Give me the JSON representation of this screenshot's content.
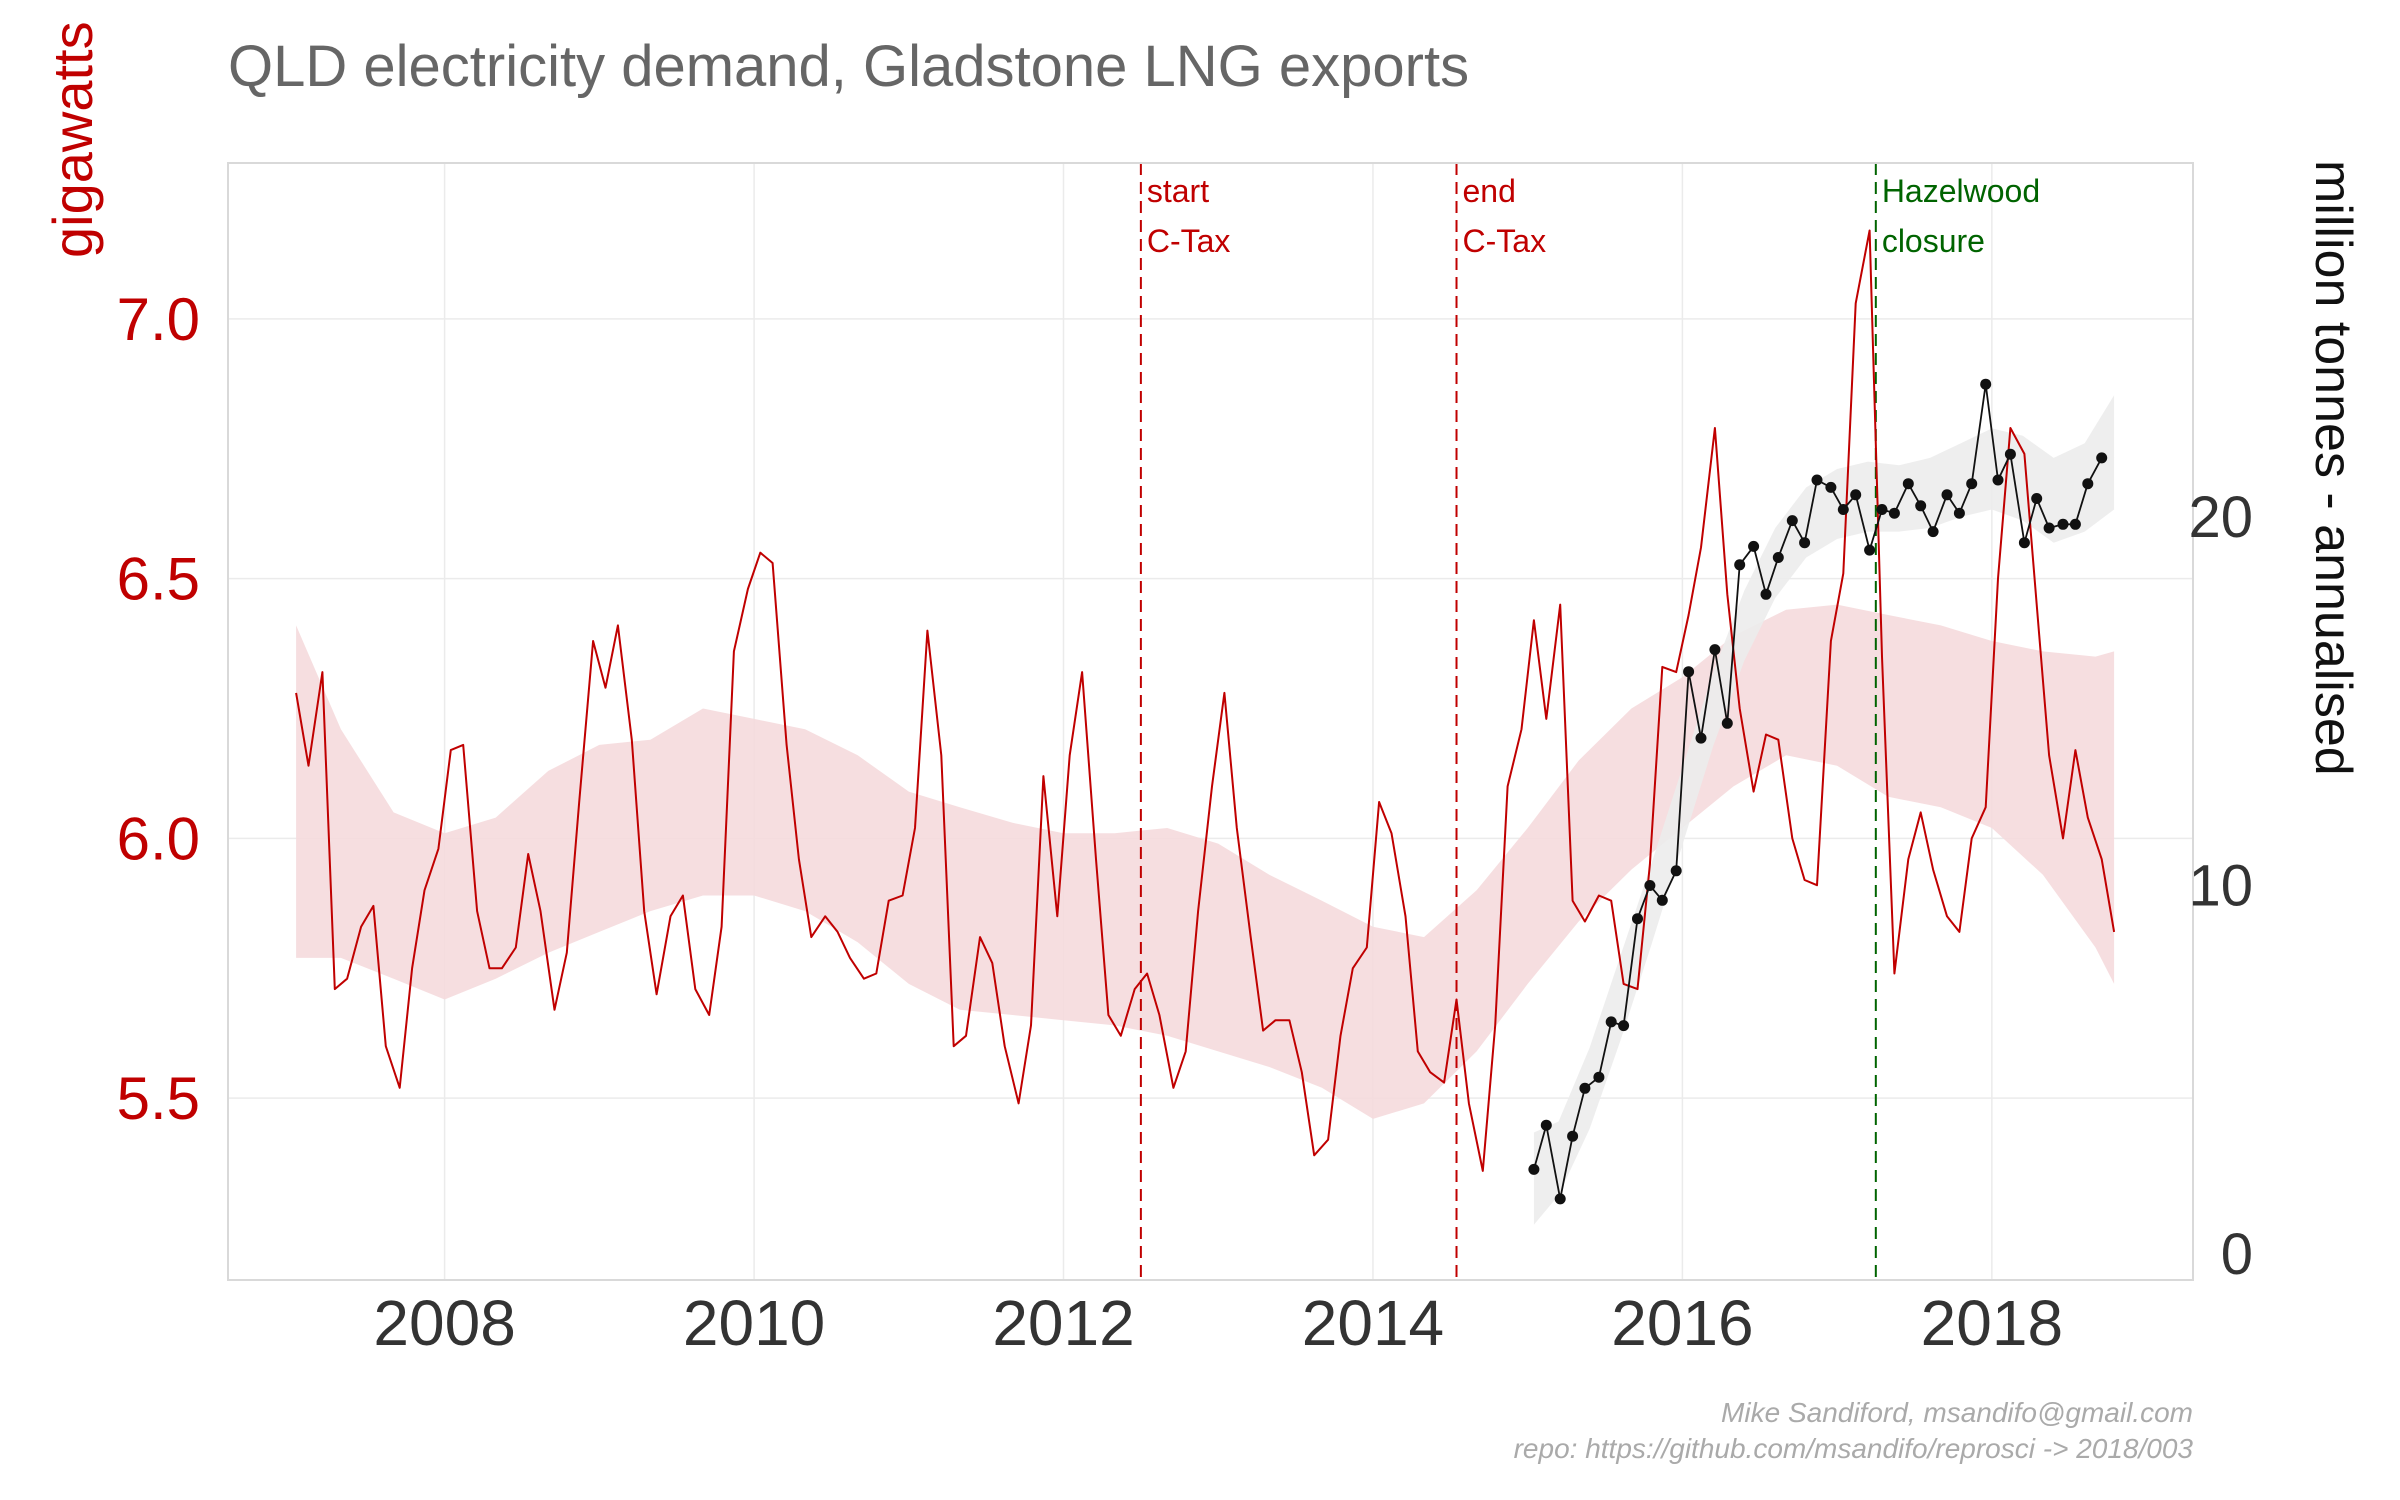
{
  "chart_data": {
    "type": "line",
    "title": "QLD electricity demand, Gladstone LNG exports",
    "caption": [
      "Mike Sandiford, msandifo@gmail.com",
      "repo: https://github.com/msandifo/reprosci -> 2018/003"
    ],
    "colors": {
      "demand": "#c00000",
      "demand_band": "#f5dadd",
      "lng": "#111111",
      "lng_band": "#ececec",
      "grid": "#ebebeb",
      "panel_border": "#d9d9d9",
      "annotation_red": "#c00000",
      "annotation_green": "#006400"
    },
    "left_axis": {
      "title": "gigawatts",
      "ticks": [
        5.5,
        6.0,
        6.5,
        7.0
      ],
      "tick_labels": [
        "5.5",
        "6.0",
        "6.5",
        "7.0"
      ],
      "range": [
        5.15,
        7.3
      ]
    },
    "right_axis": {
      "title": "million tonnes - annualised",
      "ticks": [
        0,
        10,
        20
      ],
      "tick_labels": [
        "0",
        "10",
        "20"
      ],
      "range": [
        -0.7,
        29.6
      ]
    },
    "x_axis": {
      "ticks": [
        2008,
        2010,
        2012,
        2014,
        2016,
        2018
      ],
      "tick_labels": [
        "2008",
        "2010",
        "2012",
        "2014",
        "2016",
        "2018"
      ],
      "range": [
        2006.6,
        2019.3
      ]
    },
    "annotations": [
      {
        "x": 2012.5,
        "lines": [
          "start",
          "C-Tax"
        ],
        "color": "red"
      },
      {
        "x": 2014.54,
        "lines": [
          "end",
          "C-Tax"
        ],
        "color": "red"
      },
      {
        "x": 2017.25,
        "lines": [
          "Hazelwood",
          "closure"
        ],
        "color": "green"
      }
    ],
    "series": [
      {
        "axis": "left",
        "style": "line",
        "values": [
          [
            2007.04,
            6.28
          ],
          [
            2007.12,
            6.14
          ],
          [
            2007.21,
            6.32
          ],
          [
            2007.29,
            5.71
          ],
          [
            2007.37,
            5.73
          ],
          [
            2007.46,
            5.83
          ],
          [
            2007.54,
            5.87
          ],
          [
            2007.62,
            5.6
          ],
          [
            2007.71,
            5.52
          ],
          [
            2007.79,
            5.75
          ],
          [
            2007.87,
            5.9
          ],
          [
            2007.96,
            5.98
          ],
          [
            2008.04,
            6.17
          ],
          [
            2008.12,
            6.18
          ],
          [
            2008.21,
            5.86
          ],
          [
            2008.29,
            5.75
          ],
          [
            2008.37,
            5.75
          ],
          [
            2008.46,
            5.79
          ],
          [
            2008.54,
            5.97
          ],
          [
            2008.62,
            5.86
          ],
          [
            2008.71,
            5.67
          ],
          [
            2008.79,
            5.78
          ],
          [
            2008.87,
            6.07
          ],
          [
            2008.96,
            6.38
          ],
          [
            2009.04,
            6.29
          ],
          [
            2009.12,
            6.41
          ],
          [
            2009.21,
            6.19
          ],
          [
            2009.29,
            5.86
          ],
          [
            2009.37,
            5.7
          ],
          [
            2009.46,
            5.85
          ],
          [
            2009.54,
            5.89
          ],
          [
            2009.62,
            5.71
          ],
          [
            2009.71,
            5.66
          ],
          [
            2009.79,
            5.83
          ],
          [
            2009.87,
            6.36
          ],
          [
            2009.96,
            6.48
          ],
          [
            2010.04,
            6.55
          ],
          [
            2010.12,
            6.53
          ],
          [
            2010.21,
            6.18
          ],
          [
            2010.29,
            5.96
          ],
          [
            2010.37,
            5.81
          ],
          [
            2010.46,
            5.85
          ],
          [
            2010.54,
            5.82
          ],
          [
            2010.62,
            5.77
          ],
          [
            2010.71,
            5.73
          ],
          [
            2010.79,
            5.74
          ],
          [
            2010.87,
            5.88
          ],
          [
            2010.96,
            5.89
          ],
          [
            2011.04,
            6.02
          ],
          [
            2011.12,
            6.4
          ],
          [
            2011.21,
            6.16
          ],
          [
            2011.29,
            5.6
          ],
          [
            2011.37,
            5.62
          ],
          [
            2011.46,
            5.81
          ],
          [
            2011.54,
            5.76
          ],
          [
            2011.62,
            5.6
          ],
          [
            2011.71,
            5.49
          ],
          [
            2011.79,
            5.64
          ],
          [
            2011.87,
            6.12
          ],
          [
            2011.96,
            5.85
          ],
          [
            2012.04,
            6.16
          ],
          [
            2012.12,
            6.32
          ],
          [
            2012.21,
            5.96
          ],
          [
            2012.29,
            5.66
          ],
          [
            2012.37,
            5.62
          ],
          [
            2012.46,
            5.71
          ],
          [
            2012.54,
            5.74
          ],
          [
            2012.62,
            5.66
          ],
          [
            2012.71,
            5.52
          ],
          [
            2012.79,
            5.59
          ],
          [
            2012.87,
            5.86
          ],
          [
            2012.96,
            6.1
          ],
          [
            2013.04,
            6.28
          ],
          [
            2013.12,
            6.02
          ],
          [
            2013.21,
            5.81
          ],
          [
            2013.29,
            5.63
          ],
          [
            2013.37,
            5.65
          ],
          [
            2013.46,
            5.65
          ],
          [
            2013.54,
            5.55
          ],
          [
            2013.62,
            5.39
          ],
          [
            2013.71,
            5.42
          ],
          [
            2013.79,
            5.62
          ],
          [
            2013.87,
            5.75
          ],
          [
            2013.96,
            5.79
          ],
          [
            2014.04,
            6.07
          ],
          [
            2014.12,
            6.01
          ],
          [
            2014.21,
            5.85
          ],
          [
            2014.29,
            5.59
          ],
          [
            2014.37,
            5.55
          ],
          [
            2014.46,
            5.53
          ],
          [
            2014.54,
            5.69
          ],
          [
            2014.62,
            5.49
          ],
          [
            2014.71,
            5.36
          ],
          [
            2014.79,
            5.64
          ],
          [
            2014.87,
            6.1
          ],
          [
            2014.96,
            6.21
          ],
          [
            2015.04,
            6.42
          ],
          [
            2015.12,
            6.23
          ],
          [
            2015.21,
            6.45
          ],
          [
            2015.29,
            5.88
          ],
          [
            2015.37,
            5.84
          ],
          [
            2015.46,
            5.89
          ],
          [
            2015.54,
            5.88
          ],
          [
            2015.62,
            5.72
          ],
          [
            2015.71,
            5.71
          ],
          [
            2015.79,
            5.95
          ],
          [
            2015.87,
            6.33
          ],
          [
            2015.96,
            6.32
          ],
          [
            2016.04,
            6.43
          ],
          [
            2016.12,
            6.56
          ],
          [
            2016.21,
            6.79
          ],
          [
            2016.29,
            6.47
          ],
          [
            2016.37,
            6.25
          ],
          [
            2016.46,
            6.09
          ],
          [
            2016.54,
            6.2
          ],
          [
            2016.62,
            6.19
          ],
          [
            2016.71,
            6.0
          ],
          [
            2016.79,
            5.92
          ],
          [
            2016.87,
            5.91
          ],
          [
            2016.96,
            6.38
          ],
          [
            2017.04,
            6.51
          ],
          [
            2017.12,
            7.03
          ],
          [
            2017.21,
            7.17
          ],
          [
            2017.29,
            6.35
          ],
          [
            2017.37,
            5.74
          ],
          [
            2017.46,
            5.96
          ],
          [
            2017.54,
            6.05
          ],
          [
            2017.62,
            5.94
          ],
          [
            2017.71,
            5.85
          ],
          [
            2017.79,
            5.82
          ],
          [
            2017.87,
            6.0
          ],
          [
            2017.96,
            6.06
          ],
          [
            2018.04,
            6.5
          ],
          [
            2018.12,
            6.79
          ],
          [
            2018.21,
            6.74
          ],
          [
            2018.29,
            6.45
          ],
          [
            2018.37,
            6.16
          ],
          [
            2018.46,
            6.0
          ],
          [
            2018.54,
            6.17
          ],
          [
            2018.62,
            6.04
          ],
          [
            2018.71,
            5.96
          ],
          [
            2018.79,
            5.82
          ]
        ]
      },
      {
        "axis": "left",
        "style": "band",
        "values": [
          [
            2007.04,
            5.77,
            6.41
          ],
          [
            2007.33,
            5.77,
            6.21
          ],
          [
            2007.67,
            5.73,
            6.05
          ],
          [
            2008.0,
            5.69,
            6.01
          ],
          [
            2008.33,
            5.73,
            6.04
          ],
          [
            2008.67,
            5.78,
            6.13
          ],
          [
            2009.0,
            5.82,
            6.18
          ],
          [
            2009.33,
            5.86,
            6.19
          ],
          [
            2009.67,
            5.89,
            6.25
          ],
          [
            2010.0,
            5.89,
            6.23
          ],
          [
            2010.33,
            5.86,
            6.21
          ],
          [
            2010.67,
            5.8,
            6.16
          ],
          [
            2011.0,
            5.72,
            6.09
          ],
          [
            2011.33,
            5.67,
            6.06
          ],
          [
            2011.67,
            5.66,
            6.03
          ],
          [
            2012.0,
            5.65,
            6.01
          ],
          [
            2012.33,
            5.64,
            6.01
          ],
          [
            2012.67,
            5.62,
            6.02
          ],
          [
            2013.0,
            5.59,
            5.99
          ],
          [
            2013.33,
            5.56,
            5.93
          ],
          [
            2013.67,
            5.52,
            5.88
          ],
          [
            2014.0,
            5.46,
            5.83
          ],
          [
            2014.33,
            5.49,
            5.81
          ],
          [
            2014.67,
            5.59,
            5.9
          ],
          [
            2015.0,
            5.72,
            6.02
          ],
          [
            2015.33,
            5.84,
            6.15
          ],
          [
            2015.67,
            5.94,
            6.25
          ],
          [
            2016.0,
            6.02,
            6.31
          ],
          [
            2016.33,
            6.1,
            6.39
          ],
          [
            2016.67,
            6.16,
            6.44
          ],
          [
            2017.0,
            6.14,
            6.45
          ],
          [
            2017.33,
            6.08,
            6.43
          ],
          [
            2017.67,
            6.06,
            6.41
          ],
          [
            2018.0,
            6.02,
            6.38
          ],
          [
            2018.33,
            5.93,
            6.36
          ],
          [
            2018.67,
            5.79,
            6.35
          ],
          [
            2018.79,
            5.72,
            6.36
          ]
        ]
      },
      {
        "axis": "right",
        "style": "line-points",
        "values": [
          [
            2015.04,
            2.3
          ],
          [
            2015.12,
            3.5
          ],
          [
            2015.21,
            1.5
          ],
          [
            2015.29,
            3.2
          ],
          [
            2015.37,
            4.5
          ],
          [
            2015.46,
            4.8
          ],
          [
            2015.54,
            6.3
          ],
          [
            2015.62,
            6.2
          ],
          [
            2015.71,
            9.1
          ],
          [
            2015.79,
            10.0
          ],
          [
            2015.87,
            9.6
          ],
          [
            2015.96,
            10.4
          ],
          [
            2016.04,
            15.8
          ],
          [
            2016.12,
            14.0
          ],
          [
            2016.21,
            16.4
          ],
          [
            2016.29,
            14.4
          ],
          [
            2016.37,
            18.7
          ],
          [
            2016.46,
            19.2
          ],
          [
            2016.54,
            17.9
          ],
          [
            2016.62,
            18.9
          ],
          [
            2016.71,
            19.9
          ],
          [
            2016.79,
            19.3
          ],
          [
            2016.87,
            21.0
          ],
          [
            2016.96,
            20.8
          ],
          [
            2017.04,
            20.2
          ],
          [
            2017.12,
            20.6
          ],
          [
            2017.21,
            19.1
          ],
          [
            2017.29,
            20.2
          ],
          [
            2017.37,
            20.1
          ],
          [
            2017.46,
            20.9
          ],
          [
            2017.54,
            20.3
          ],
          [
            2017.62,
            19.6
          ],
          [
            2017.71,
            20.6
          ],
          [
            2017.79,
            20.1
          ],
          [
            2017.87,
            20.9
          ],
          [
            2017.96,
            23.6
          ],
          [
            2018.04,
            21.0
          ],
          [
            2018.12,
            21.7
          ],
          [
            2018.21,
            19.3
          ],
          [
            2018.29,
            20.5
          ],
          [
            2018.37,
            19.7
          ],
          [
            2018.46,
            19.8
          ],
          [
            2018.54,
            19.8
          ],
          [
            2018.62,
            20.9
          ],
          [
            2018.71,
            21.6
          ]
        ]
      },
      {
        "axis": "right",
        "style": "band",
        "values": [
          [
            2015.04,
            0.8,
            3.3
          ],
          [
            2015.2,
            1.6,
            3.6
          ],
          [
            2015.4,
            3.4,
            5.6
          ],
          [
            2015.6,
            5.8,
            8.1
          ],
          [
            2015.8,
            8.4,
            10.6
          ],
          [
            2016.0,
            11.1,
            13.2
          ],
          [
            2016.2,
            13.8,
            15.8
          ],
          [
            2016.4,
            16.1,
            18.0
          ],
          [
            2016.6,
            17.8,
            19.7
          ],
          [
            2016.8,
            18.9,
            20.8
          ],
          [
            2017.0,
            19.4,
            21.3
          ],
          [
            2017.2,
            19.6,
            21.5
          ],
          [
            2017.4,
            19.6,
            21.4
          ],
          [
            2017.6,
            19.7,
            21.6
          ],
          [
            2017.8,
            20.0,
            22.0
          ],
          [
            2018.0,
            20.2,
            22.4
          ],
          [
            2018.2,
            19.9,
            22.2
          ],
          [
            2018.4,
            19.3,
            21.6
          ],
          [
            2018.6,
            19.6,
            22.0
          ],
          [
            2018.79,
            20.2,
            23.3
          ]
        ]
      }
    ]
  }
}
